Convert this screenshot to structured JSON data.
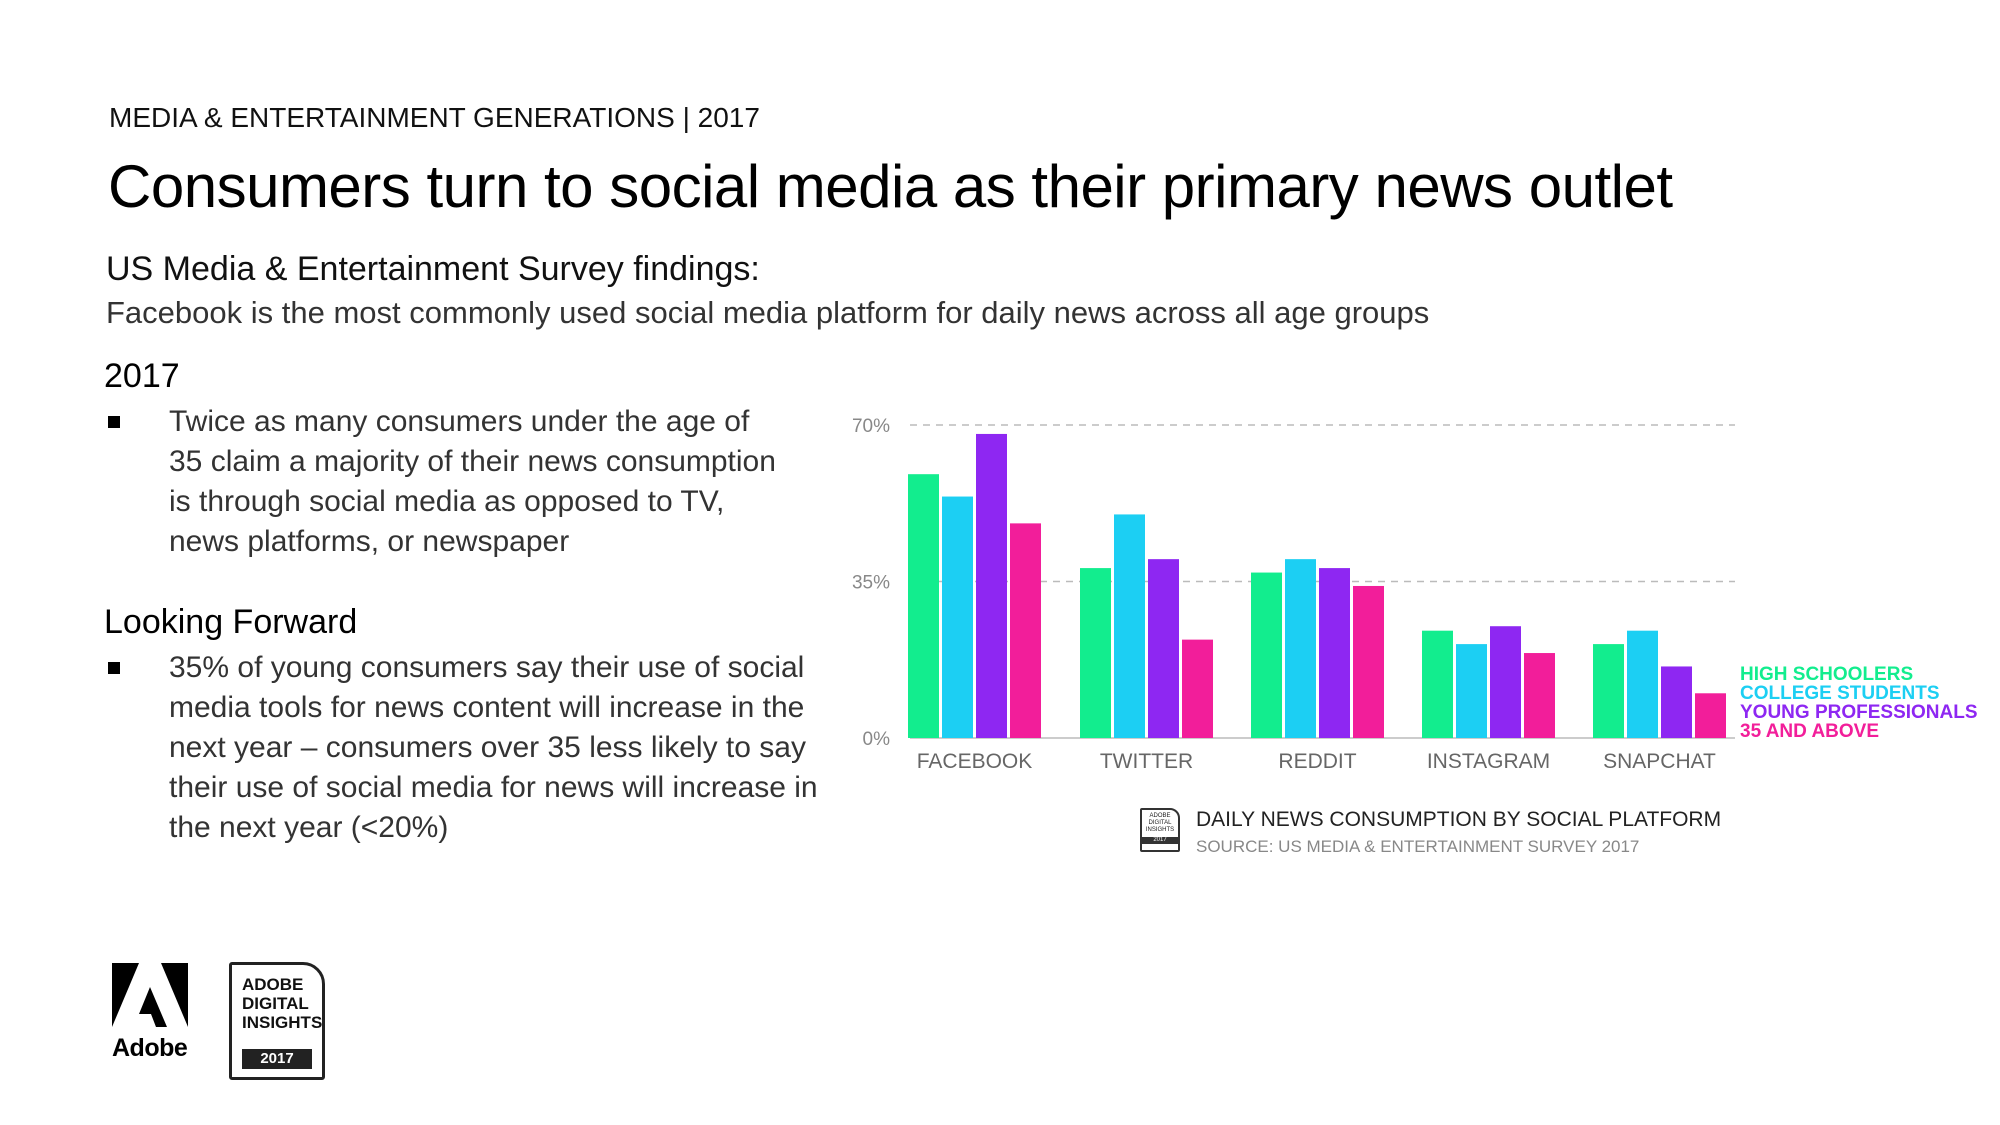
{
  "header": {
    "kicker": "MEDIA & ENTERTAINMENT GENERATIONS | 2017",
    "title": "Consumers turn to social media as their primary news outlet",
    "survey_heading": "US Media & Entertainment Survey findings:",
    "survey_sub": "Facebook is the most commonly used social media platform for daily news across all age groups"
  },
  "sections": [
    {
      "heading": "2017",
      "bullet": "Twice as many consumers under the age of 35 claim a majority of their news consumption is through social media as opposed to TV, news platforms, or newspaper"
    },
    {
      "heading": "Looking Forward",
      "bullet": "35% of young consumers say their use of social media tools for news content will increase in the next year – consumers over 35 less likely to say their use of social media for news will increase in the next year (<20%)"
    }
  ],
  "chart_data": {
    "type": "bar",
    "title": "DAILY NEWS CONSUMPTION BY SOCIAL PLATFORM",
    "source": "SOURCE: US MEDIA & ENTERTAINMENT SURVEY 2017",
    "categories": [
      "FACEBOOK",
      "TWITTER",
      "REDDIT",
      "INSTAGRAM",
      "SNAPCHAT"
    ],
    "series": [
      {
        "name": "HIGH SCHOOLERS",
        "color": "#12ED8E",
        "values": [
          59,
          38,
          37,
          24,
          21
        ]
      },
      {
        "name": "COLLEGE STUDENTS",
        "color": "#1CCFF3",
        "values": [
          54,
          50,
          40,
          21,
          24
        ]
      },
      {
        "name": "YOUNG PROFESSIONALS",
        "color": "#8E27F2",
        "values": [
          68,
          40,
          38,
          25,
          16
        ]
      },
      {
        "name": "35 AND ABOVE",
        "color": "#F21E9A",
        "values": [
          48,
          22,
          34,
          19,
          10
        ]
      }
    ],
    "yticks": [
      "70%",
      "35%",
      "0%"
    ],
    "ytick_values": [
      70,
      35,
      0
    ],
    "ylim": [
      0,
      70
    ],
    "grid": true,
    "legend": "right"
  },
  "badge_small": {
    "l1": "ADOBE",
    "l2": "DIGITAL",
    "l3": "INSIGHTS",
    "year": "2017"
  },
  "footer": {
    "adobe_label": "Adobe",
    "badge_l1": "ADOBE",
    "badge_l2": "DIGITAL",
    "badge_l3": "INSIGHTS",
    "badge_year": "2017"
  },
  "colors": {
    "grid": "#BBBBBB",
    "axis": "#CCCCCC",
    "tick_text": "#888888"
  }
}
